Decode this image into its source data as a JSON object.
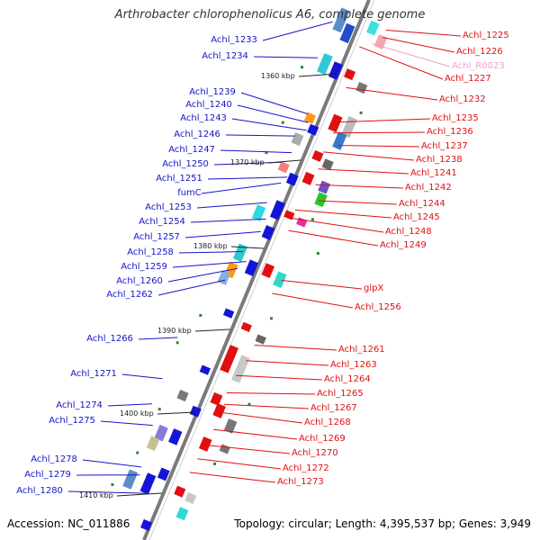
{
  "title": "Arthrobacter chlorophenolicus A6, complete genome",
  "accession": "Accession: NC_011886",
  "topology": "Topology: circular; Length: 4,395,537 bp; Genes: 3,949",
  "colors": {
    "left_label": "#1515c8",
    "right_label": "#e01010",
    "rna_label": "#f0a0d0",
    "backbone": "#7a7a7a"
  },
  "scale_marks": [
    "1360 kbp",
    "1370 kbp",
    "1380 kbp",
    "1390 kbp",
    "1400 kbp",
    "1410 kbp"
  ],
  "left_genes": [
    "Achl_1233",
    "Achl_1234",
    "Achl_1239",
    "Achl_1240",
    "Achl_1243",
    "Achl_1246",
    "Achl_1247",
    "Achl_1250",
    "Achl_1251",
    "fumC",
    "Achl_1253",
    "Achl_1254",
    "Achl_1257",
    "Achl_1258",
    "Achl_1259",
    "Achl_1260",
    "Achl_1262",
    "Achl_1266",
    "Achl_1271",
    "Achl_1274",
    "Achl_1275",
    "Achl_1278",
    "Achl_1279",
    "Achl_1280"
  ],
  "right_genes": [
    "Achl_1225",
    "Achl_1226",
    "Achl_R0023",
    "Achl_1227",
    "Achl_1232",
    "Achl_1235",
    "Achl_1236",
    "Achl_1237",
    "Achl_1238",
    "Achl_1241",
    "Achl_1242",
    "Achl_1244",
    "Achl_1245",
    "Achl_1248",
    "Achl_1249",
    "glpX",
    "Achl_1256",
    "Achl_1261",
    "Achl_1263",
    "Achl_1264",
    "Achl_1265",
    "Achl_1267",
    "Achl_1268",
    "Achl_1269",
    "Achl_1270",
    "Achl_1272",
    "Achl_1273"
  ]
}
